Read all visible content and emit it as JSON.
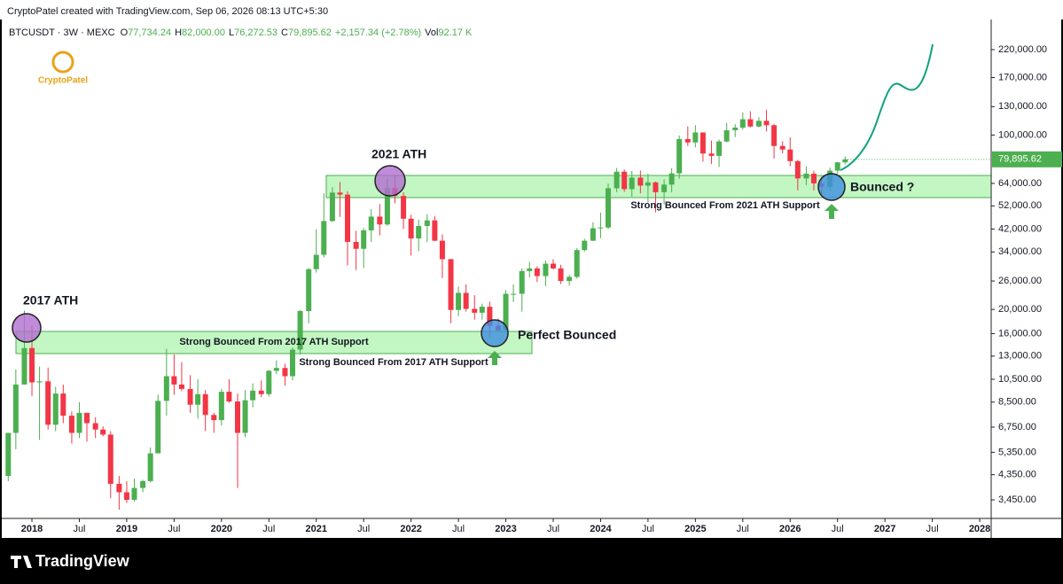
{
  "header": "CryptoPatel created with TradingView.com, Sep 06, 2026 08:13 UTC+5:30",
  "brand": "CryptoPatel",
  "footer": "TradingView",
  "legend": {
    "symbol": "BTCUSDT · 3W · MEXC",
    "o_label": "O",
    "o": "77,734.24",
    "h_label": "H",
    "h": "82,000.00",
    "l_label": "L",
    "l": "76,272.53",
    "c_label": "C",
    "c": "79,895.62",
    "change": "+2,157.34 (+2.78%)",
    "vol_label": "Vol",
    "vol": "92.17 K"
  },
  "annotations": {
    "ath2017": "2017 ATH",
    "ath2021": "2021 ATH",
    "support2017a": "Strong Bounced From 2017 ATH Support",
    "support2017b": "Strong Bounced From 2017 ATH Support",
    "perfect": "Perfect Bounced",
    "support2021": "Strong Bounced From 2021 ATH Support",
    "bounced": "Bounced ?"
  },
  "chart_data": {
    "type": "candlestick",
    "log_scale": true,
    "grid": false,
    "up_color": "#4caf50",
    "down_color": "#f23645",
    "xlim": [
      2017.663,
      2028.121
    ],
    "xticks": [
      2018,
      {
        "value": 2018.5,
        "label": "Jul"
      },
      2019,
      {
        "value": 2019.5,
        "label": "Jul"
      },
      2020,
      {
        "value": 2020.5,
        "label": "Jul"
      },
      2021,
      {
        "value": 2021.5,
        "label": "Jul"
      },
      2022,
      {
        "value": 2022.5,
        "label": "Jul"
      },
      2023,
      {
        "value": 2023.5,
        "label": "Jul"
      },
      2024,
      {
        "value": 2024.5,
        "label": "Jul"
      },
      2025,
      {
        "value": 2025.5,
        "label": "Jul"
      },
      2026,
      {
        "value": 2026.5,
        "label": "Jul"
      },
      2027,
      {
        "value": 2027.5,
        "label": "Jul"
      },
      2028
    ],
    "ylim": [
      2906,
      290500
    ],
    "yticks": [
      {
        "value": 3450,
        "label": "3,450.00"
      },
      {
        "value": 4350,
        "label": "4,350.00"
      },
      {
        "value": 5350,
        "label": "5,350.00"
      },
      {
        "value": 6750,
        "label": "6,750.00"
      },
      {
        "value": 8500,
        "label": "8,500.00"
      },
      {
        "value": 10500,
        "label": "10,500.00"
      },
      {
        "value": 13000,
        "label": "13,000.00"
      },
      {
        "value": 16000,
        "label": "16,000.00"
      },
      {
        "value": 20000,
        "label": "20,000.00"
      },
      {
        "value": 26000,
        "label": "26,000.00"
      },
      {
        "value": 34000,
        "label": "34,000.00"
      },
      {
        "value": 42000,
        "label": "42,000.00"
      },
      {
        "value": 52000,
        "label": "52,000.00"
      },
      {
        "value": 64000,
        "label": "64,000.00"
      },
      {
        "value": 100000,
        "label": "100,000.00"
      },
      {
        "value": 130000,
        "label": "130,000.00"
      },
      {
        "value": 170000,
        "label": "170,000.00"
      },
      {
        "value": 220000,
        "label": "220,000.00"
      }
    ],
    "last_price": {
      "value": 79895.62,
      "label": "79,895.62"
    },
    "x": [
      2017.75,
      2017.83,
      2017.92,
      2018.0,
      2018.08,
      2018.17,
      2018.25,
      2018.33,
      2018.42,
      2018.5,
      2018.58,
      2018.67,
      2018.75,
      2018.83,
      2018.92,
      2019.0,
      2019.08,
      2019.17,
      2019.25,
      2019.33,
      2019.42,
      2019.5,
      2019.58,
      2019.67,
      2019.75,
      2019.83,
      2019.92,
      2020.0,
      2020.08,
      2020.17,
      2020.25,
      2020.33,
      2020.42,
      2020.5,
      2020.58,
      2020.67,
      2020.75,
      2020.83,
      2020.92,
      2021.0,
      2021.08,
      2021.17,
      2021.25,
      2021.33,
      2021.42,
      2021.5,
      2021.58,
      2021.67,
      2021.75,
      2021.83,
      2021.92,
      2022.0,
      2022.08,
      2022.17,
      2022.25,
      2022.33,
      2022.42,
      2022.5,
      2022.58,
      2022.67,
      2022.75,
      2022.83,
      2022.92,
      2023.0,
      2023.08,
      2023.17,
      2023.25,
      2023.33,
      2023.42,
      2023.5,
      2023.58,
      2023.67,
      2023.75,
      2023.83,
      2023.92,
      2024.0,
      2024.08,
      2024.17,
      2024.25,
      2024.33,
      2024.42,
      2024.5,
      2024.58,
      2024.67,
      2024.75,
      2024.83,
      2024.92,
      2025.0,
      2025.08,
      2025.17,
      2025.25,
      2025.33,
      2025.42,
      2025.5,
      2025.58,
      2025.67,
      2025.75,
      2025.83,
      2025.92,
      2026.0,
      2026.08,
      2026.17,
      2026.25,
      2026.33,
      2026.42,
      2026.5,
      2026.58
    ],
    "candles": [
      [
        4300,
        6400,
        4100,
        6400
      ],
      [
        6400,
        11500,
        5500,
        10000
      ],
      [
        10000,
        19800,
        10000,
        14000
      ],
      [
        14000,
        17200,
        9000,
        10200
      ],
      [
        10200,
        11800,
        6000,
        10300
      ],
      [
        10300,
        11700,
        6600,
        6900
      ],
      [
        6900,
        9800,
        6500,
        9200
      ],
      [
        9200,
        10000,
        7000,
        7500
      ],
      [
        7500,
        7800,
        5800,
        6400
      ],
      [
        6400,
        8500,
        6100,
        7700
      ],
      [
        7700,
        7700,
        5900,
        7000
      ],
      [
        7000,
        7400,
        6100,
        6600
      ],
      [
        6600,
        6800,
        6200,
        6300
      ],
      [
        6300,
        6500,
        3500,
        4000
      ],
      [
        4000,
        4300,
        3150,
        3700
      ],
      [
        3700,
        4100,
        3350,
        3450
      ],
      [
        3450,
        4200,
        3400,
        3850
      ],
      [
        3850,
        4150,
        3700,
        4100
      ],
      [
        4100,
        5600,
        4050,
        5300
      ],
      [
        5300,
        9100,
        5300,
        8600
      ],
      [
        8600,
        13900,
        7500,
        10800
      ],
      [
        10800,
        13200,
        9100,
        10000
      ],
      [
        10000,
        12300,
        9400,
        9600
      ],
      [
        9600,
        10900,
        7700,
        8300
      ],
      [
        8300,
        10500,
        7300,
        9150
      ],
      [
        9150,
        9500,
        6500,
        7550
      ],
      [
        7550,
        7700,
        6400,
        7200
      ],
      [
        7200,
        9600,
        6850,
        9350
      ],
      [
        9350,
        10500,
        8450,
        8550
      ],
      [
        8550,
        9200,
        3850,
        6400
      ],
      [
        6400,
        9500,
        6150,
        8650
      ],
      [
        8650,
        10100,
        8100,
        9450
      ],
      [
        9450,
        10400,
        8900,
        9150
      ],
      [
        9150,
        11450,
        8950,
        11350
      ],
      [
        11350,
        12500,
        11000,
        11650
      ],
      [
        11650,
        12100,
        9900,
        10800
      ],
      [
        10800,
        14100,
        10400,
        13800
      ],
      [
        13800,
        19900,
        13200,
        19700
      ],
      [
        19700,
        29300,
        17600,
        29000
      ],
      [
        29000,
        41900,
        28100,
        33100
      ],
      [
        33100,
        58400,
        32300,
        45200
      ],
      [
        45200,
        61800,
        45000,
        58800
      ],
      [
        58800,
        64900,
        47000,
        57700
      ],
      [
        57700,
        59500,
        30000,
        37300
      ],
      [
        37300,
        41300,
        28800,
        35000
      ],
      [
        35000,
        42400,
        29300,
        41500
      ],
      [
        41500,
        50500,
        37300,
        47100
      ],
      [
        47100,
        52900,
        39600,
        43800
      ],
      [
        43800,
        67000,
        43300,
        61300
      ],
      [
        61300,
        69000,
        53300,
        57000
      ],
      [
        57000,
        59000,
        42000,
        46200
      ],
      [
        46200,
        47900,
        32900,
        38500
      ],
      [
        38500,
        45800,
        34300,
        43200
      ],
      [
        43200,
        48200,
        37200,
        45500
      ],
      [
        45500,
        47400,
        37600,
        37700
      ],
      [
        37700,
        40000,
        26700,
        31800
      ],
      [
        31800,
        31900,
        17600,
        19900
      ],
      [
        19900,
        24700,
        18800,
        23300
      ],
      [
        23300,
        25200,
        19600,
        20100
      ],
      [
        20100,
        22800,
        18200,
        19400
      ],
      [
        19400,
        21100,
        18200,
        20500
      ],
      [
        20500,
        21500,
        15500,
        17200
      ],
      [
        17200,
        18400,
        16300,
        16500
      ],
      [
        16500,
        23900,
        16500,
        23100
      ],
      [
        23100,
        25200,
        21400,
        23100
      ],
      [
        23100,
        29200,
        19600,
        28500
      ],
      [
        28500,
        31000,
        26900,
        29200
      ],
      [
        29200,
        29800,
        25800,
        27200
      ],
      [
        27200,
        31400,
        24800,
        30500
      ],
      [
        30500,
        31800,
        28900,
        29200
      ],
      [
        29200,
        30200,
        25300,
        26000
      ],
      [
        26000,
        27500,
        24900,
        27000
      ],
      [
        27000,
        35200,
        26600,
        34600
      ],
      [
        34600,
        38400,
        34100,
        37700
      ],
      [
        37700,
        44700,
        37600,
        42300
      ],
      [
        42300,
        48900,
        38600,
        42600
      ],
      [
        42600,
        63900,
        41900,
        61200
      ],
      [
        61200,
        73800,
        59100,
        71300
      ],
      [
        71300,
        72800,
        59200,
        60700
      ],
      [
        60700,
        71900,
        56600,
        67500
      ],
      [
        67500,
        72000,
        58400,
        62700
      ],
      [
        62700,
        70000,
        53700,
        64600
      ],
      [
        64600,
        65100,
        49000,
        59000
      ],
      [
        59000,
        66500,
        52600,
        63300
      ],
      [
        63300,
        73600,
        58900,
        70200
      ],
      [
        70200,
        99600,
        66800,
        96400
      ],
      [
        96400,
        108300,
        90500,
        93400
      ],
      [
        93400,
        109500,
        89200,
        102400
      ],
      [
        102400,
        102500,
        78200,
        84300
      ],
      [
        84300,
        95000,
        76600,
        82500
      ],
      [
        82500,
        95800,
        74500,
        94200
      ],
      [
        94200,
        111900,
        93400,
        104600
      ],
      [
        104600,
        110500,
        98200,
        107100
      ],
      [
        107100,
        123200,
        105100,
        115700
      ],
      [
        115700,
        124500,
        107300,
        108200
      ],
      [
        108200,
        117900,
        107300,
        114000
      ],
      [
        114000,
        126200,
        103500,
        109500
      ],
      [
        109500,
        111000,
        80500,
        90400
      ],
      [
        90400,
        94500,
        84500,
        87500
      ],
      [
        87500,
        97900,
        75000,
        78600
      ],
      [
        78600,
        79500,
        60000,
        67000
      ],
      [
        67000,
        75000,
        63000,
        70000
      ],
      [
        70000,
        72000,
        60000,
        64000
      ],
      [
        64000,
        68000,
        58000,
        62000
      ],
      [
        62000,
        74000,
        60000,
        72000
      ],
      [
        72000,
        78000,
        70000,
        77734.24
      ],
      [
        77734.24,
        82000,
        76272.53,
        79895.62
      ]
    ]
  }
}
